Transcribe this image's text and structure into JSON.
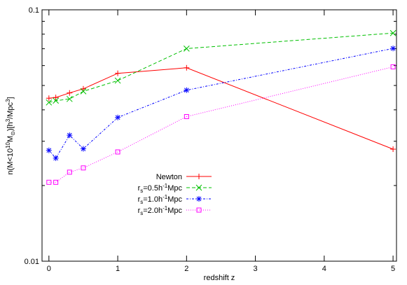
{
  "chart_data": {
    "type": "line",
    "title": "",
    "xlabel": "redshift z",
    "ylabel_parts": {
      "pre": "n(M<10",
      "sup1": "10",
      "mid": "M",
      "sub1": "⊙",
      "post1": ")[h",
      "sup2": "3",
      "post2": "/Mpc",
      "sup3": "3",
      "post3": "]"
    },
    "x_scale": "linear",
    "y_scale": "log",
    "xlim": [
      -0.1,
      5.05
    ],
    "ylim": [
      0.01,
      0.1
    ],
    "x_ticks": [
      0,
      1,
      2,
      3,
      4,
      5
    ],
    "x_tick_labels": [
      "0",
      "1",
      "2",
      "3",
      "4",
      "5"
    ],
    "y_ticks": [
      0.01,
      0.1
    ],
    "y_tick_labels": [
      "0.01",
      "0.1"
    ],
    "grid": false,
    "legend_position": "lower-center",
    "series": [
      {
        "name": "Newton",
        "color": "#ff0000",
        "dash": "solid",
        "marker": "plus",
        "x": [
          0,
          0.1,
          0.3,
          0.5,
          1,
          2,
          5
        ],
        "y": [
          0.0445,
          0.0448,
          0.0467,
          0.0485,
          0.0559,
          0.0588,
          0.0279
        ]
      },
      {
        "name_parts": {
          "pre": "r",
          "sub": "s",
          "post": "=0.5h",
          "sup": "-1",
          "post2": "Mpc"
        },
        "color": "#00c000",
        "dash": "dashed",
        "marker": "x",
        "x": [
          0,
          0.1,
          0.3,
          0.5,
          1,
          2,
          5
        ],
        "y": [
          0.0428,
          0.0435,
          0.0442,
          0.0474,
          0.0523,
          0.0701,
          0.0808
        ]
      },
      {
        "name_parts": {
          "pre": "r",
          "sub": "s",
          "post": "=1.0h",
          "sup": "-1",
          "post2": "Mpc"
        },
        "color": "#0000ff",
        "dash": "dotted-dashed",
        "marker": "star",
        "x": [
          0,
          0.1,
          0.3,
          0.5,
          1,
          2,
          5
        ],
        "y": [
          0.0276,
          0.0257,
          0.0317,
          0.028,
          0.0373,
          0.0479,
          0.0702
        ]
      },
      {
        "name_parts": {
          "pre": "r",
          "sub": "s",
          "post": "=2.0h",
          "sup": "-1",
          "post2": "Mpc"
        },
        "color": "#ff00ff",
        "dash": "dotted",
        "marker": "square",
        "x": [
          0,
          0.1,
          0.3,
          0.5,
          1,
          2,
          5
        ],
        "y": [
          0.0206,
          0.0206,
          0.0226,
          0.0235,
          0.0272,
          0.0376,
          0.0593
        ]
      }
    ]
  }
}
